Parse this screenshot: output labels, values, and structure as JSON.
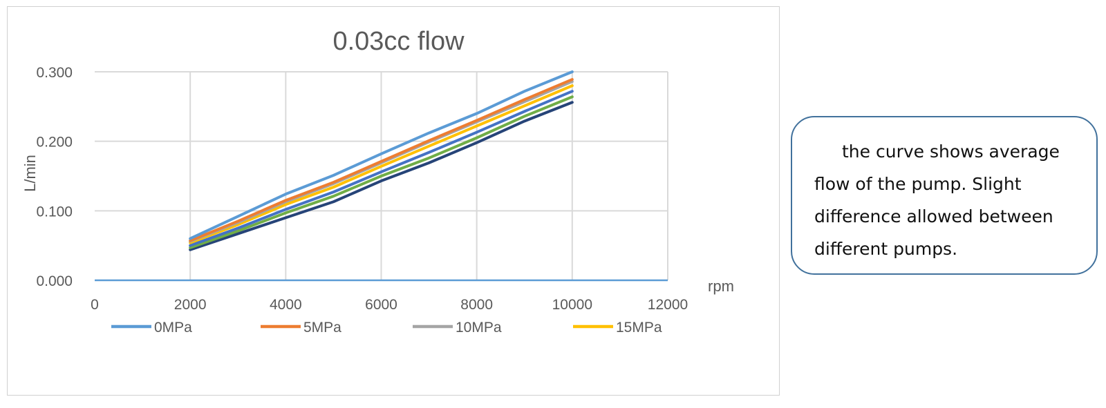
{
  "chart_data": {
    "type": "line",
    "title": "0.03cc flow",
    "xlabel": "rpm",
    "ylabel": "L/min",
    "xlim": [
      0,
      12000
    ],
    "ylim": [
      0,
      0.3
    ],
    "x_ticks": [
      0,
      2000,
      4000,
      6000,
      8000,
      10000,
      12000
    ],
    "x_tick_labels": [
      "0",
      "2000",
      "4000",
      "6000",
      "8000",
      "10000",
      "12000"
    ],
    "y_ticks": [
      0,
      0.1,
      0.2,
      0.3
    ],
    "y_tick_labels": [
      "0.000",
      "0.100",
      "0.200",
      "0.300"
    ],
    "grid": true,
    "legend_position": "bottom",
    "x": [
      2000,
      3000,
      4000,
      5000,
      6000,
      7000,
      8000,
      9000,
      10000
    ],
    "series": [
      {
        "name": "0MPa",
        "color": "#5b9bd5",
        "values": [
          0.06,
          0.092,
          0.124,
          0.151,
          0.182,
          0.212,
          0.24,
          0.272,
          0.3
        ]
      },
      {
        "name": "5MPa",
        "color": "#ed7d31",
        "values": [
          0.057,
          0.085,
          0.115,
          0.141,
          0.171,
          0.201,
          0.23,
          0.26,
          0.289
        ]
      },
      {
        "name": "10MPa",
        "color": "#a5a5a5",
        "values": [
          0.056,
          0.083,
          0.113,
          0.139,
          0.169,
          0.199,
          0.228,
          0.257,
          0.286
        ]
      },
      {
        "name": "15MPa",
        "color": "#ffc000",
        "values": [
          0.054,
          0.08,
          0.109,
          0.134,
          0.164,
          0.193,
          0.222,
          0.251,
          0.28
        ]
      },
      {
        "color": "#4472c4",
        "values": [
          0.05,
          0.075,
          0.102,
          0.127,
          0.156,
          0.184,
          0.213,
          0.243,
          0.272
        ]
      },
      {
        "color": "#70ad47",
        "values": [
          0.047,
          0.071,
          0.097,
          0.121,
          0.15,
          0.176,
          0.205,
          0.236,
          0.264
        ]
      },
      {
        "color": "#264478",
        "values": [
          0.044,
          0.067,
          0.09,
          0.113,
          0.143,
          0.169,
          0.198,
          0.229,
          0.256
        ]
      }
    ]
  },
  "note": {
    "text": "the curve shows average flow of the pump. Slight difference allowed between different pumps."
  }
}
